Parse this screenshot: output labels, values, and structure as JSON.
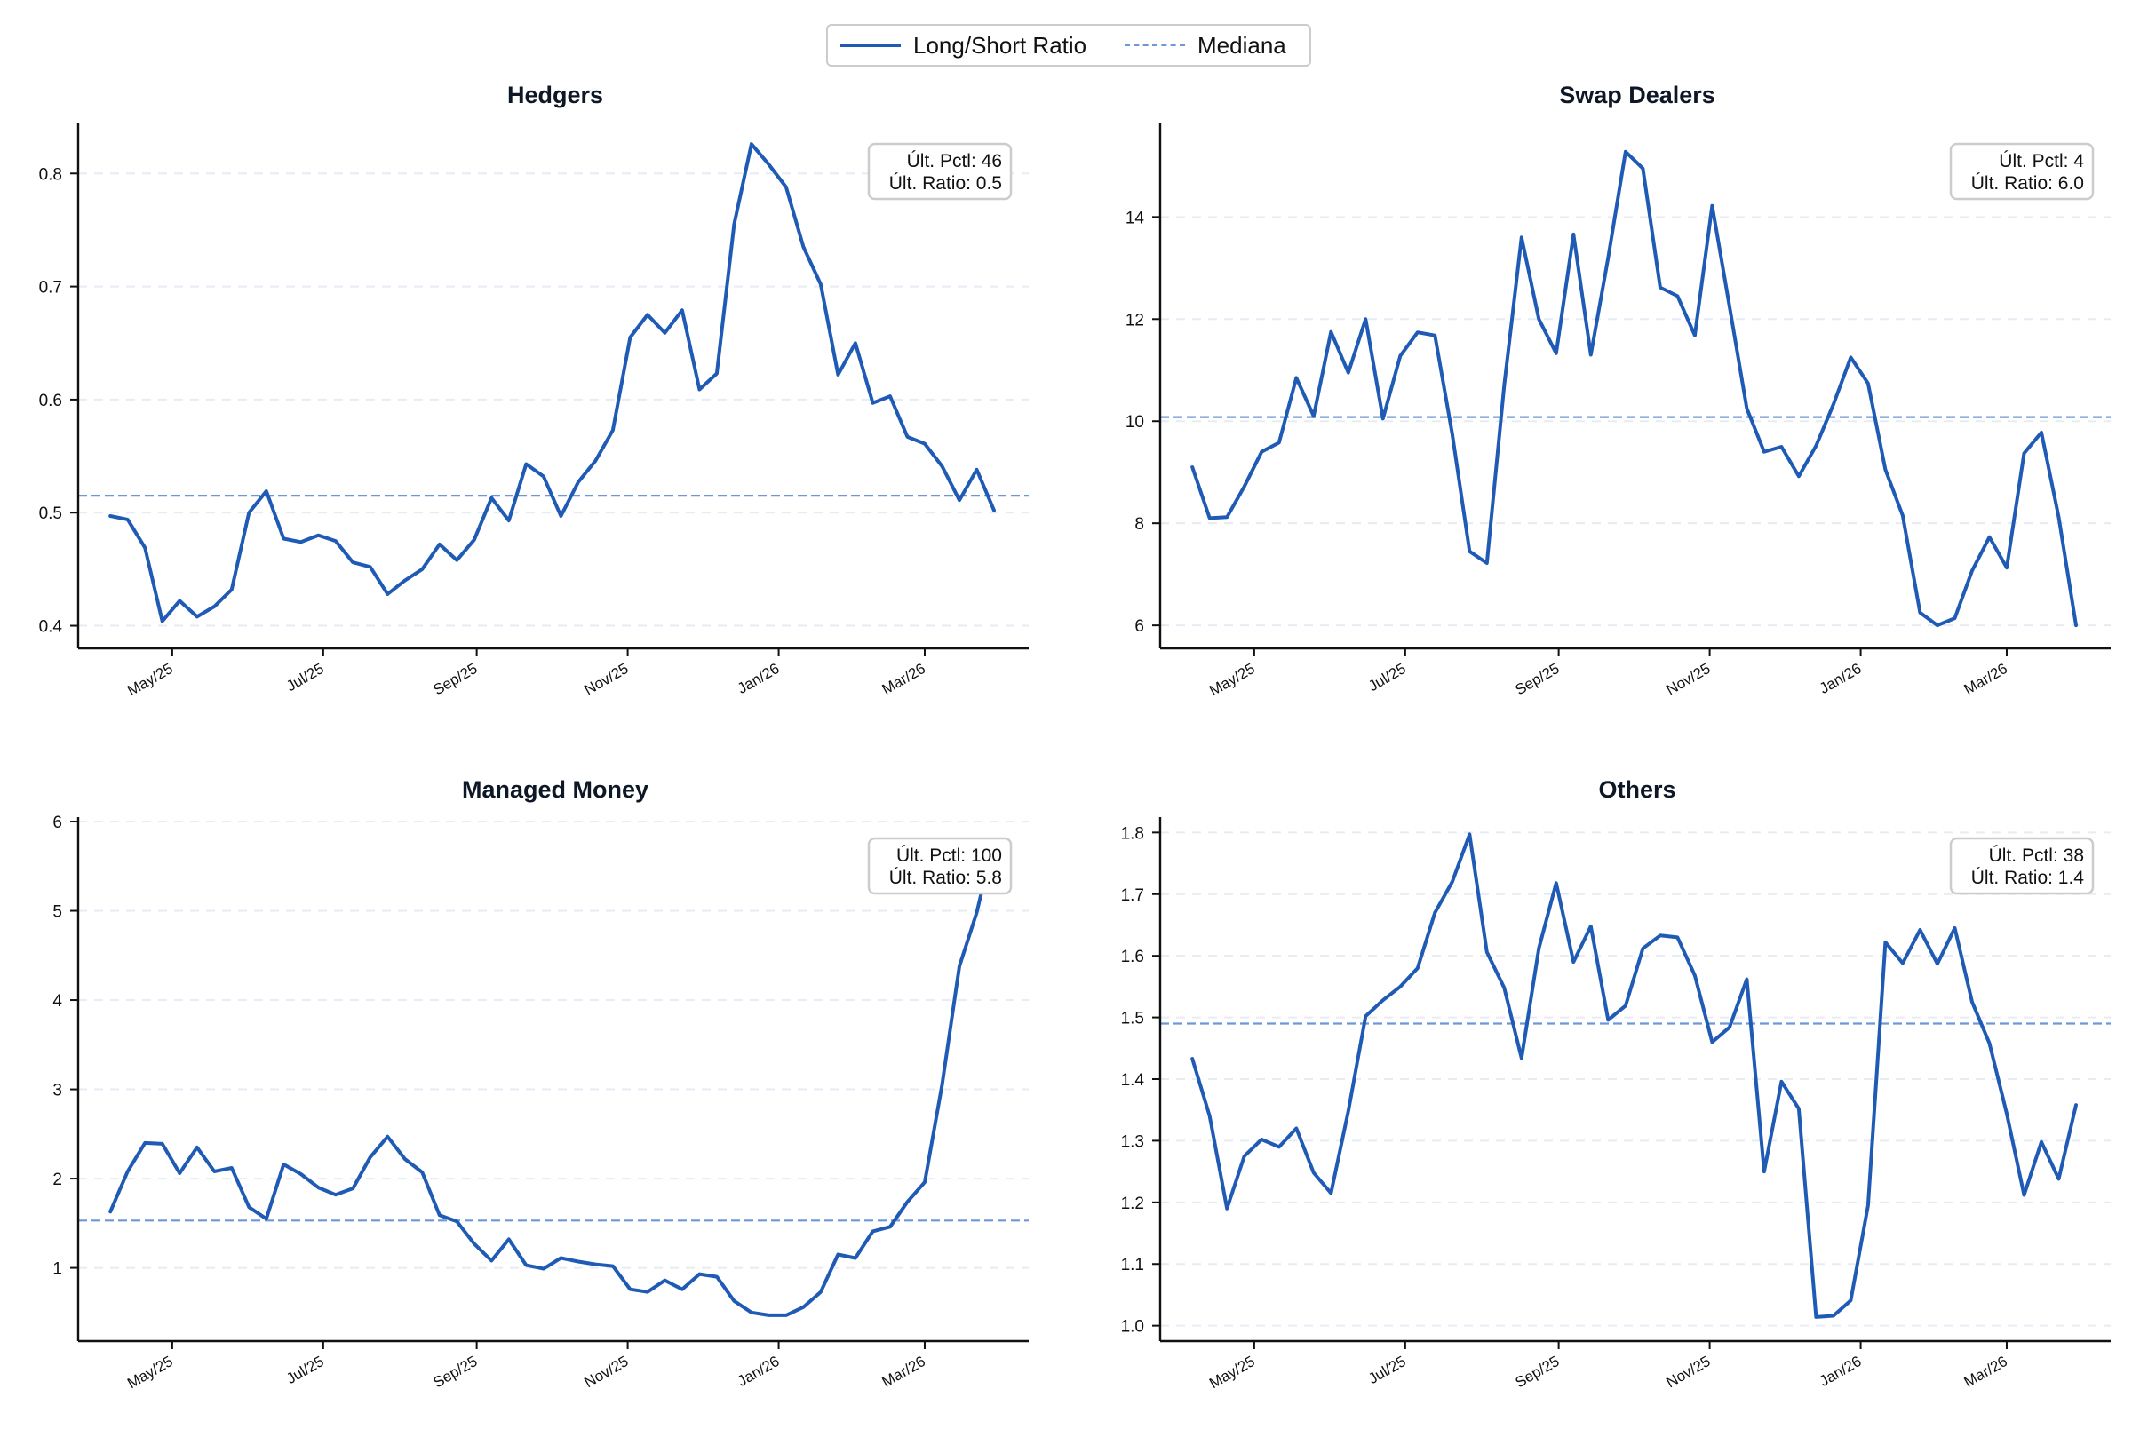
{
  "legend": {
    "series_label": "Long/Short Ratio",
    "median_label": "Mediana"
  },
  "colors": {
    "line": "#1f5bb5",
    "median": "#6d97d6",
    "grid": "#e6ecf5",
    "axis": "#111111",
    "title": "#0e1726"
  },
  "chart_data": [
    {
      "type": "line",
      "title": "Hedgers",
      "x_ticks": [
        "May/25",
        "Jul/25",
        "Sep/25",
        "Nov/25",
        "Jan/26",
        "Mar/26"
      ],
      "x_range": [
        "2025-03-24",
        "2026-04-12"
      ],
      "y_ticks": [
        "0.4",
        "0.5",
        "0.6",
        "0.7",
        "0.8"
      ],
      "ylim": [
        0.38,
        0.845
      ],
      "median": 0.515,
      "annotation": {
        "pctl": "Últ. Pctl: 46",
        "ratio": "Últ. Ratio: 0.5"
      },
      "series": [
        {
          "name": "Long/Short Ratio",
          "values": [
            0.497,
            0.494,
            0.469,
            0.404,
            0.422,
            0.408,
            0.417,
            0.432,
            0.5,
            0.519,
            0.477,
            0.474,
            0.48,
            0.475,
            0.456,
            0.452,
            0.428,
            0.44,
            0.45,
            0.472,
            0.458,
            0.476,
            0.513,
            0.493,
            0.543,
            0.532,
            0.497,
            0.527,
            0.546,
            0.573,
            0.655,
            0.675,
            0.659,
            0.679,
            0.609,
            0.623,
            0.755,
            0.826,
            0.808,
            0.788,
            0.735,
            0.702,
            0.622,
            0.65,
            0.597,
            0.603,
            0.567,
            0.561,
            0.541,
            0.511,
            0.538,
            0.502
          ]
        }
      ]
    },
    {
      "type": "line",
      "title": "Swap Dealers",
      "x_ticks": [
        "May/25",
        "Jul/25",
        "Sep/25",
        "Nov/25",
        "Jan/26",
        "Mar/26"
      ],
      "x_range": [
        "2025-03-24",
        "2026-04-12"
      ],
      "y_ticks": [
        "6",
        "8",
        "10",
        "12",
        "14"
      ],
      "ylim": [
        5.55,
        15.85
      ],
      "median": 10.08,
      "annotation": {
        "pctl": "Últ. Pctl: 4",
        "ratio": "Últ. Ratio: 6.0"
      },
      "series": [
        {
          "name": "Long/Short Ratio",
          "values": [
            9.1,
            8.1,
            8.12,
            8.72,
            9.4,
            9.58,
            10.85,
            10.1,
            11.75,
            10.95,
            12.0,
            10.05,
            11.28,
            11.74,
            11.68,
            9.75,
            7.45,
            7.22,
            10.7,
            13.6,
            12.0,
            11.33,
            13.66,
            11.3,
            13.2,
            15.28,
            14.95,
            12.62,
            12.45,
            11.68,
            14.22,
            12.25,
            10.25,
            9.4,
            9.5,
            8.92,
            9.52,
            10.33,
            11.25,
            10.74,
            9.05,
            8.15,
            6.25,
            6.0,
            6.14,
            7.07,
            7.73,
            7.13,
            9.37,
            9.78,
            8.12,
            6.0
          ]
        }
      ]
    },
    {
      "type": "line",
      "title": "Managed Money",
      "x_ticks": [
        "May/25",
        "Jul/25",
        "Sep/25",
        "Nov/25",
        "Jan/26",
        "Mar/26"
      ],
      "x_range": [
        "2025-03-24",
        "2026-04-12"
      ],
      "y_ticks": [
        "1",
        "2",
        "3",
        "4",
        "5",
        "6"
      ],
      "ylim": [
        0.18,
        6.05
      ],
      "median": 1.53,
      "annotation": {
        "pctl": "Últ. Pctl: 100",
        "ratio": "Últ. Ratio: 5.8"
      },
      "series": [
        {
          "name": "Long/Short Ratio",
          "values": [
            1.63,
            2.08,
            2.4,
            2.39,
            2.06,
            2.35,
            2.08,
            2.12,
            1.68,
            1.55,
            2.16,
            2.05,
            1.9,
            1.82,
            1.89,
            2.24,
            2.47,
            2.22,
            2.07,
            1.59,
            1.52,
            1.27,
            1.08,
            1.32,
            1.03,
            0.99,
            1.11,
            1.07,
            1.04,
            1.02,
            0.76,
            0.73,
            0.86,
            0.76,
            0.93,
            0.9,
            0.63,
            0.5,
            0.47,
            0.47,
            0.56,
            0.73,
            1.15,
            1.11,
            1.41,
            1.46,
            1.74,
            1.96,
            3.05,
            4.38,
            4.98,
            5.8
          ]
        }
      ]
    },
    {
      "type": "line",
      "title": "Others",
      "x_ticks": [
        "May/25",
        "Jul/25",
        "Sep/25",
        "Nov/25",
        "Jan/26",
        "Mar/26"
      ],
      "x_range": [
        "2025-03-24",
        "2026-04-12"
      ],
      "y_ticks": [
        "1.0",
        "1.1",
        "1.2",
        "1.3",
        "1.4",
        "1.5",
        "1.6",
        "1.7",
        "1.8"
      ],
      "ylim": [
        0.975,
        1.825
      ],
      "median": 1.49,
      "annotation": {
        "pctl": "Últ. Pctl: 38",
        "ratio": "Últ. Ratio: 1.4"
      },
      "series": [
        {
          "name": "Long/Short Ratio",
          "values": [
            1.433,
            1.34,
            1.19,
            1.275,
            1.302,
            1.29,
            1.32,
            1.248,
            1.215,
            1.348,
            1.502,
            1.528,
            1.55,
            1.58,
            1.67,
            1.72,
            1.797,
            1.606,
            1.548,
            1.434,
            1.612,
            1.718,
            1.59,
            1.648,
            1.496,
            1.519,
            1.612,
            1.633,
            1.63,
            1.568,
            1.46,
            1.484,
            1.562,
            1.25,
            1.396,
            1.352,
            1.014,
            1.016,
            1.041,
            1.195,
            1.622,
            1.588,
            1.642,
            1.587,
            1.645,
            1.525,
            1.458,
            1.344,
            1.212,
            1.298,
            1.238,
            1.358
          ]
        }
      ]
    }
  ]
}
